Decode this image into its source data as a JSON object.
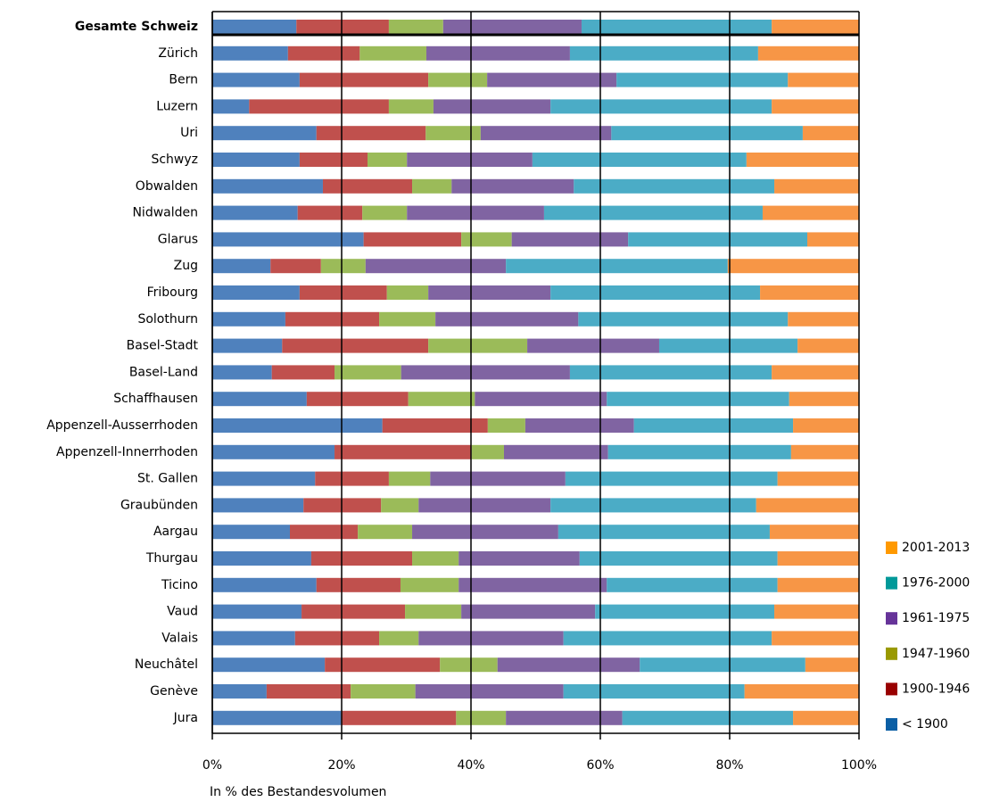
{
  "chart_data": {
    "type": "stacked_barh",
    "x_axis_label": "In % des Bestandesvolumen",
    "categories": [
      "Gesamte Schweiz",
      "Zürich",
      "Bern",
      "Luzern",
      "Uri",
      "Schwyz",
      "Obwalden",
      "Nidwalden",
      "Glarus",
      "Zug",
      "Fribourg",
      "Solothurn",
      "Basel-Stadt",
      "Basel-Land",
      "Schaffhausen",
      "Appenzell-Ausserrhoden",
      "Appenzell-Innerrhoden",
      "St. Gallen",
      "Graubünden",
      "Aargau",
      "Thurgau",
      "Ticino",
      "Vaud",
      "Valais",
      "Neuchâtel",
      "Genève",
      "Jura"
    ],
    "series": [
      {
        "name": "< 1900",
        "color": "#4f81bd",
        "legend_color": "#0b5fa5",
        "values": [
          13.0,
          11.7,
          13.5,
          5.7,
          16.1,
          13.5,
          17.1,
          13.2,
          23.4,
          9.0,
          13.5,
          11.3,
          10.8,
          9.2,
          14.6,
          26.3,
          18.9,
          15.9,
          14.1,
          12.0,
          15.3,
          16.1,
          13.8,
          12.8,
          17.4,
          8.4,
          19.9
        ]
      },
      {
        "name": "1900-1946",
        "color": "#c0504d",
        "legend_color": "#990000",
        "values": [
          14.3,
          11.1,
          19.9,
          21.6,
          16.9,
          10.5,
          13.8,
          10.0,
          15.1,
          7.8,
          13.5,
          14.5,
          22.6,
          9.7,
          15.7,
          16.3,
          21.2,
          11.4,
          12.0,
          10.5,
          15.6,
          13.0,
          16.0,
          13.0,
          17.8,
          13.0,
          17.8
        ]
      },
      {
        "name": "1947-1960",
        "color": "#9bbb59",
        "legend_color": "#999900",
        "values": [
          8.4,
          10.3,
          9.1,
          6.9,
          8.5,
          6.1,
          6.1,
          6.9,
          7.8,
          6.9,
          6.4,
          8.7,
          15.3,
          10.3,
          10.3,
          5.8,
          5.0,
          6.4,
          5.8,
          8.4,
          7.2,
          9.0,
          8.7,
          6.1,
          8.9,
          10.0,
          7.7
        ]
      },
      {
        "name": "1961-1975",
        "color": "#8064a2",
        "legend_color": "#663399",
        "values": [
          21.4,
          22.2,
          20.0,
          18.1,
          20.2,
          19.4,
          18.9,
          21.2,
          18.0,
          21.7,
          18.9,
          22.1,
          20.4,
          26.1,
          20.4,
          16.8,
          16.1,
          20.9,
          20.4,
          22.6,
          18.7,
          22.9,
          20.7,
          22.4,
          22.0,
          22.9,
          18.0
        ]
      },
      {
        "name": "1976-2000",
        "color": "#4bacc6",
        "legend_color": "#009999",
        "values": [
          29.4,
          29.1,
          26.5,
          34.2,
          29.6,
          33.1,
          31.0,
          33.8,
          27.7,
          34.3,
          32.4,
          32.4,
          21.4,
          31.2,
          28.2,
          24.6,
          28.3,
          32.8,
          31.8,
          32.7,
          30.6,
          26.4,
          27.7,
          32.2,
          25.6,
          28.0,
          26.4
        ]
      },
      {
        "name": "2001-2013",
        "color": "#f79646",
        "legend_color": "#ff9900",
        "values": [
          13.5,
          15.6,
          11.0,
          13.5,
          8.7,
          17.4,
          13.1,
          14.9,
          8.0,
          20.3,
          15.3,
          11.0,
          9.5,
          13.5,
          10.8,
          10.2,
          10.5,
          12.6,
          15.9,
          13.8,
          12.6,
          12.6,
          13.1,
          13.5,
          8.3,
          17.7,
          10.2
        ]
      }
    ],
    "xlim": [
      0,
      100
    ],
    "xticks": [
      {
        "value": 0,
        "label": "0%"
      },
      {
        "value": 20,
        "label": "20%"
      },
      {
        "value": 40,
        "label": "40%"
      },
      {
        "value": 60,
        "label": "60%"
      },
      {
        "value": 80,
        "label": "80%"
      },
      {
        "value": 100,
        "label": "100%"
      }
    ],
    "grid": true
  }
}
